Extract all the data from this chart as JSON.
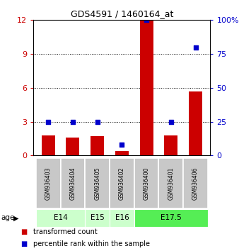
{
  "title": "GDS4591 / 1460164_at",
  "samples": [
    "GSM936403",
    "GSM936404",
    "GSM936405",
    "GSM936402",
    "GSM936400",
    "GSM936401",
    "GSM936406"
  ],
  "red_values": [
    1.8,
    1.6,
    1.7,
    0.4,
    12.0,
    1.8,
    5.7
  ],
  "blue_values": [
    25,
    25,
    25,
    8,
    100,
    25,
    80
  ],
  "left_ylim": [
    0,
    12
  ],
  "right_ylim": [
    0,
    100
  ],
  "left_yticks": [
    0,
    3,
    6,
    9,
    12
  ],
  "right_yticks": [
    0,
    25,
    50,
    75,
    100
  ],
  "right_yticklabels": [
    "0",
    "25",
    "50",
    "75",
    "100%"
  ],
  "red_color": "#cc0000",
  "blue_color": "#0000cc",
  "age_groups": [
    {
      "label": "E14",
      "samples": [
        "GSM936403",
        "GSM936404"
      ],
      "color": "#ccffcc"
    },
    {
      "label": "E15",
      "samples": [
        "GSM936405"
      ],
      "color": "#ccffcc"
    },
    {
      "label": "E16",
      "samples": [
        "GSM936402"
      ],
      "color": "#ccffcc"
    },
    {
      "label": "E17.5",
      "samples": [
        "GSM936400",
        "GSM936401",
        "GSM936406"
      ],
      "color": "#55ee55"
    }
  ],
  "sample_bg_color": "#c8c8c8",
  "legend_red_label": "transformed count",
  "legend_blue_label": "percentile rank within the sample"
}
